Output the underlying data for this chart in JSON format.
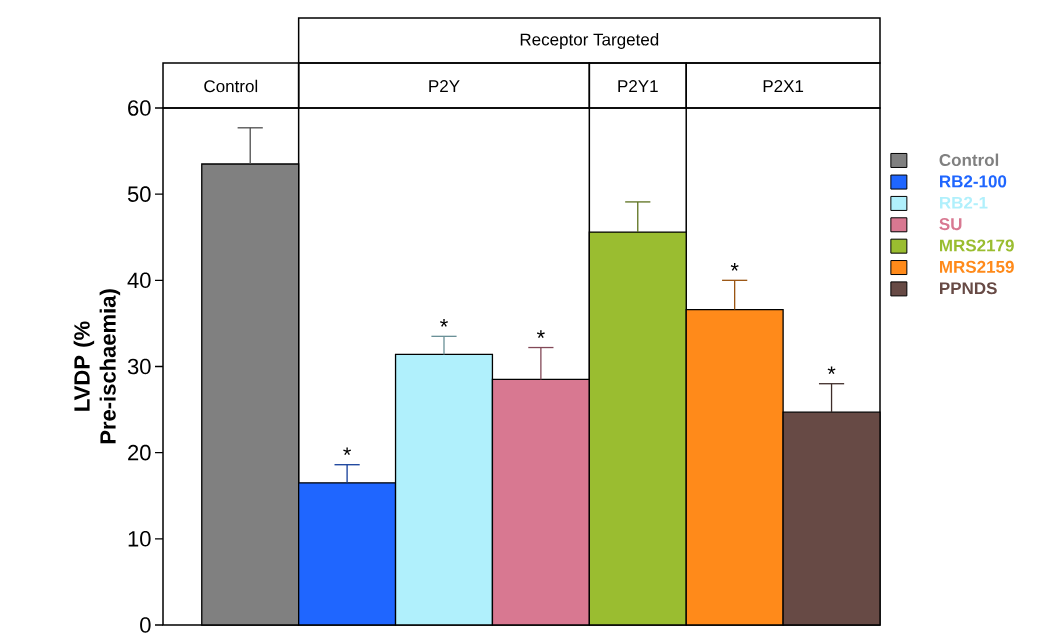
{
  "chart_data": {
    "type": "bar",
    "stacked": true,
    "ylabel": "LVDP (% Pre-ischaemia)",
    "categories": [
      null,
      null,
      null,
      null,
      null,
      null,
      null
    ],
    "ylim": [
      0,
      60
    ],
    "yticks": [
      0,
      10,
      20,
      30,
      40,
      50,
      60
    ],
    "legend": "right",
    "annotations": [
      "Receptor Targeted",
      "Control",
      "P2Y",
      "P2Y1",
      "P2X1"
    ],
    "series": [
      {
        "name": "Control",
        "color": "#808080",
        "values": [
          53.5,
          null,
          null,
          null,
          null,
          null,
          null
        ],
        "errors": [
          [
            53.5,
            57.7
          ],
          null,
          null,
          null,
          null,
          null,
          null
        ]
      },
      {
        "name": "RB2-100",
        "color": "#1f66ff",
        "values": [
          null,
          16.5,
          null,
          null,
          null,
          null,
          null
        ],
        "errors": [
          null,
          [
            16.5,
            18.6
          ],
          null,
          null,
          null,
          null,
          null
        ],
        "value_labels": [
          null,
          "*",
          null,
          null,
          null,
          null,
          null
        ]
      },
      {
        "name": "RB2-1",
        "color": "#b0f0fc",
        "values": [
          null,
          null,
          31.4,
          null,
          null,
          null,
          null
        ],
        "errors": [
          null,
          null,
          [
            31.4,
            33.5
          ],
          null,
          null,
          null,
          null
        ],
        "value_labels": [
          null,
          null,
          "*",
          null,
          null,
          null,
          null
        ]
      },
      {
        "name": "SU",
        "color": "#d87891",
        "values": [
          null,
          null,
          null,
          28.5,
          null,
          null,
          null
        ],
        "errors": [
          null,
          null,
          null,
          [
            28.5,
            32.2
          ],
          null,
          null,
          null
        ],
        "value_labels": [
          null,
          null,
          null,
          "*",
          null,
          null,
          null
        ]
      },
      {
        "name": "MRS2179",
        "color": "#9abd30",
        "values": [
          null,
          null,
          null,
          null,
          45.6,
          null,
          null
        ],
        "errors": [
          null,
          null,
          null,
          null,
          [
            45.6,
            49.1
          ],
          null,
          null
        ]
      },
      {
        "name": "MRS2159",
        "color": "#ff8a1a",
        "values": [
          null,
          null,
          null,
          null,
          null,
          36.6,
          null
        ],
        "errors": [
          null,
          null,
          null,
          null,
          null,
          [
            36.6,
            40.0
          ],
          null
        ],
        "value_labels": [
          null,
          null,
          null,
          null,
          null,
          "*",
          null
        ]
      },
      {
        "name": "PPNDS",
        "color": "#674a45",
        "values": [
          null,
          null,
          null,
          null,
          null,
          null,
          24.7
        ],
        "errors": [
          null,
          null,
          null,
          null,
          null,
          null,
          [
            24.7,
            28.0
          ]
        ],
        "value_labels": [
          null,
          null,
          null,
          null,
          null,
          null,
          "*"
        ]
      }
    ]
  }
}
